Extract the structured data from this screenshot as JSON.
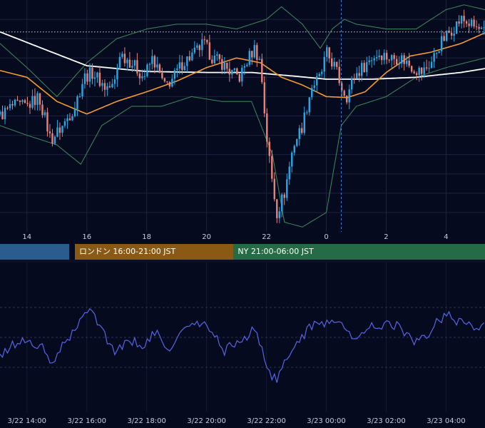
{
  "chart_data": [
    {
      "type": "candlestick",
      "x_ticks": [
        "14",
        "16",
        "18",
        "20",
        "22",
        "0",
        "2",
        "4"
      ],
      "x_tick_hours": [
        14,
        16,
        18,
        20,
        22,
        24,
        26,
        28
      ],
      "x_range_hours": [
        13.1,
        29.3
      ],
      "y_range": [
        -12,
        12
      ],
      "reference_line_level": 8.7,
      "grid": true,
      "crosshair_hour": 24.5,
      "colors": {
        "up": "#29a8e6",
        "down": "#e8837a",
        "ma_long": "#ffffff",
        "ma_mid": "#f39c2c",
        "bands": "#3d8a5c",
        "reference": "#cfd3e6",
        "grid": "#1c2240"
      },
      "price_path": [
        [
          13.1,
          0
        ],
        [
          13.5,
          1
        ],
        [
          14.0,
          1
        ],
        [
          14.4,
          2
        ],
        [
          14.8,
          -2.5
        ],
        [
          15.2,
          -1
        ],
        [
          15.6,
          1
        ],
        [
          15.9,
          4
        ],
        [
          16.2,
          4.5
        ],
        [
          16.6,
          3
        ],
        [
          16.9,
          3
        ],
        [
          17.1,
          6.5
        ],
        [
          17.5,
          5.5
        ],
        [
          17.9,
          4
        ],
        [
          18.2,
          6
        ],
        [
          18.6,
          3
        ],
        [
          18.9,
          4
        ],
        [
          19.2,
          5.5
        ],
        [
          19.6,
          6.5
        ],
        [
          19.9,
          7.5
        ],
        [
          20.2,
          6
        ],
        [
          20.5,
          5.5
        ],
        [
          20.8,
          4.5
        ],
        [
          21.1,
          4
        ],
        [
          21.4,
          6
        ],
        [
          21.6,
          7
        ],
        [
          21.8,
          5.5
        ],
        [
          22.0,
          -2
        ],
        [
          22.2,
          -7
        ],
        [
          22.35,
          -10
        ],
        [
          22.6,
          -8
        ],
        [
          22.9,
          -3
        ],
        [
          23.2,
          -1
        ],
        [
          23.5,
          3
        ],
        [
          23.8,
          4
        ],
        [
          24.0,
          6.5
        ],
        [
          24.3,
          5
        ],
        [
          24.5,
          3
        ],
        [
          24.7,
          2
        ],
        [
          24.9,
          4
        ],
        [
          25.2,
          5
        ],
        [
          25.5,
          6
        ],
        [
          25.8,
          6.5
        ],
        [
          26.1,
          6
        ],
        [
          26.5,
          6
        ],
        [
          26.9,
          5
        ],
        [
          27.2,
          4.5
        ],
        [
          27.5,
          5.5
        ],
        [
          27.8,
          7.5
        ],
        [
          28.2,
          9
        ],
        [
          28.5,
          10
        ],
        [
          28.8,
          9.5
        ],
        [
          29.3,
          8.5
        ]
      ],
      "ma_long": [
        [
          13.1,
          8.7
        ],
        [
          14.5,
          7
        ],
        [
          16,
          5.2
        ],
        [
          18,
          4.6
        ],
        [
          20,
          4.5
        ],
        [
          21.5,
          4.5
        ],
        [
          23,
          4.1
        ],
        [
          24,
          3.8
        ],
        [
          25.5,
          3.8
        ],
        [
          27,
          4.0
        ],
        [
          28.5,
          4.5
        ],
        [
          29.3,
          4.9
        ]
      ],
      "ma_mid": [
        [
          13.1,
          4.7
        ],
        [
          14,
          4
        ],
        [
          15,
          1.5
        ],
        [
          16,
          0.2
        ],
        [
          17,
          1.5
        ],
        [
          18,
          2.5
        ],
        [
          19,
          3.6
        ],
        [
          20,
          5
        ],
        [
          21,
          6
        ],
        [
          21.8,
          5.5
        ],
        [
          22.5,
          4
        ],
        [
          23.2,
          3.2
        ],
        [
          24,
          2
        ],
        [
          24.7,
          1.9
        ],
        [
          25.3,
          2.5
        ],
        [
          26,
          4.5
        ],
        [
          26.8,
          6.2
        ],
        [
          27.5,
          6.6
        ],
        [
          28.5,
          7.5
        ],
        [
          29.3,
          8.6
        ]
      ],
      "band_upper": [
        [
          13.1,
          7.5
        ],
        [
          14,
          5
        ],
        [
          15,
          2
        ],
        [
          16,
          5.5
        ],
        [
          17,
          8
        ],
        [
          18,
          9
        ],
        [
          19,
          9.5
        ],
        [
          20,
          9.5
        ],
        [
          21,
          9
        ],
        [
          22,
          10
        ],
        [
          22.5,
          11.3
        ],
        [
          23.2,
          9.5
        ],
        [
          23.8,
          7
        ],
        [
          24.2,
          9
        ],
        [
          24.6,
          10
        ],
        [
          25,
          9.5
        ],
        [
          26,
          9
        ],
        [
          27,
          9
        ],
        [
          28,
          11
        ],
        [
          28.6,
          11.5
        ],
        [
          29.3,
          11
        ]
      ],
      "band_lower": [
        [
          13.1,
          -1
        ],
        [
          14,
          -2
        ],
        [
          15,
          -3
        ],
        [
          15.8,
          -5
        ],
        [
          16.5,
          -1
        ],
        [
          17.5,
          1
        ],
        [
          18.5,
          1
        ],
        [
          19.5,
          2
        ],
        [
          20.5,
          1.5
        ],
        [
          21.5,
          1.5
        ],
        [
          22.2,
          -4
        ],
        [
          22.6,
          -11
        ],
        [
          23.2,
          -11.5
        ],
        [
          24,
          -10
        ],
        [
          24.5,
          -1
        ],
        [
          25,
          1
        ],
        [
          26,
          2
        ],
        [
          27,
          4
        ],
        [
          28,
          5
        ],
        [
          29.3,
          6
        ]
      ]
    },
    {
      "type": "line",
      "x_ticks": [
        "3/22 14:00",
        "3/22 16:00",
        "3/22 18:00",
        "3/22 20:00",
        "3/22 22:00",
        "3/23 00:00",
        "3/23 02:00",
        "3/23 04:00"
      ],
      "x_tick_hours": [
        14,
        16,
        18,
        20,
        22,
        24,
        26,
        28
      ],
      "x_range_hours": [
        13.1,
        29.3
      ],
      "y_range": [
        0,
        100
      ],
      "levels": [
        70,
        50,
        30
      ],
      "grid": true,
      "color": "#5566e8",
      "path": [
        [
          13.1,
          36
        ],
        [
          13.5,
          45
        ],
        [
          14.0,
          48
        ],
        [
          14.5,
          43
        ],
        [
          14.8,
          32
        ],
        [
          15.3,
          47
        ],
        [
          15.8,
          60
        ],
        [
          16.1,
          72
        ],
        [
          16.3,
          64
        ],
        [
          16.6,
          51
        ],
        [
          17.0,
          40
        ],
        [
          17.4,
          48
        ],
        [
          17.9,
          45
        ],
        [
          18.3,
          53
        ],
        [
          18.7,
          42
        ],
        [
          19.0,
          48
        ],
        [
          19.3,
          57
        ],
        [
          19.7,
          59
        ],
        [
          20.0,
          57
        ],
        [
          20.3,
          51
        ],
        [
          20.6,
          41
        ],
        [
          20.9,
          46
        ],
        [
          21.3,
          49
        ],
        [
          21.6,
          56
        ],
        [
          21.9,
          40
        ],
        [
          22.1,
          26
        ],
        [
          22.35,
          21
        ],
        [
          22.6,
          32
        ],
        [
          23.0,
          47
        ],
        [
          23.4,
          55
        ],
        [
          23.8,
          61
        ],
        [
          24.1,
          59
        ],
        [
          24.4,
          64
        ],
        [
          24.7,
          53
        ],
        [
          25.0,
          47
        ],
        [
          25.3,
          55
        ],
        [
          25.6,
          58
        ],
        [
          26.0,
          59
        ],
        [
          26.4,
          58
        ],
        [
          26.7,
          51
        ],
        [
          27.0,
          46
        ],
        [
          27.4,
          53
        ],
        [
          27.8,
          62
        ],
        [
          28.0,
          67
        ],
        [
          28.3,
          61
        ],
        [
          28.6,
          63
        ],
        [
          28.9,
          55
        ],
        [
          29.3,
          57
        ]
      ]
    }
  ],
  "sessions": [
    {
      "label": "",
      "start_hour": 13.1,
      "end_hour": 15.4,
      "color": "#2a5c8e"
    },
    {
      "label": "ロンドン 16:00-21:00 JST",
      "start_hour": 15.6,
      "end_hour": 20.9,
      "color": "#8a5a14"
    },
    {
      "label": "NY 21:00-06:00 JST",
      "start_hour": 20.9,
      "end_hour": 29.3,
      "color": "#256b45"
    }
  ]
}
